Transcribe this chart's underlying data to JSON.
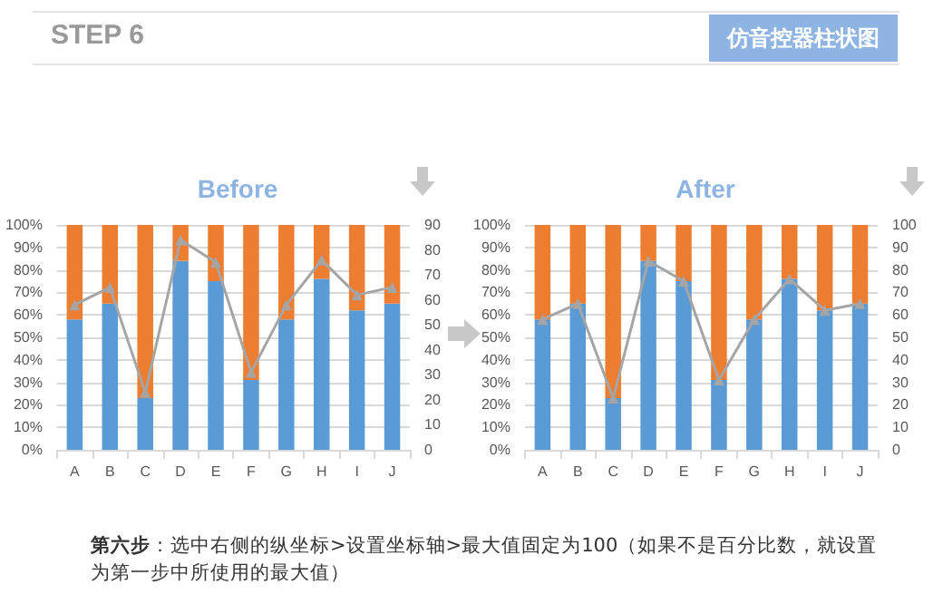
{
  "chart_data": [
    {
      "type": "bar",
      "title": "Before",
      "stacked": true,
      "categories": [
        "A",
        "B",
        "C",
        "D",
        "E",
        "F",
        "G",
        "H",
        "I",
        "J"
      ],
      "series": [
        {
          "color": "#5b9bd5",
          "values": [
            58,
            65,
            23,
            84,
            75,
            31,
            58,
            76,
            62,
            65
          ]
        },
        {
          "color": "#ed7d31",
          "values": [
            42,
            35,
            77,
            16,
            25,
            69,
            42,
            24,
            38,
            35
          ]
        },
        {
          "type": "line",
          "axis": "y2",
          "color": "#a5a5a5",
          "values": [
            58,
            65,
            23,
            84,
            75,
            31,
            58,
            76,
            62,
            65
          ]
        }
      ],
      "ylim": [
        0,
        100
      ],
      "yticks": [
        {
          "value": 0,
          "label": "0%"
        },
        {
          "value": 10,
          "label": "10%"
        },
        {
          "value": 20,
          "label": "20%"
        },
        {
          "value": 30,
          "label": "30%"
        },
        {
          "value": 40,
          "label": "40%"
        },
        {
          "value": 50,
          "label": "50%"
        },
        {
          "value": 60,
          "label": "60%"
        },
        {
          "value": 70,
          "label": "70%"
        },
        {
          "value": 80,
          "label": "80%"
        },
        {
          "value": 90,
          "label": "90%"
        },
        {
          "value": 100,
          "label": "100%"
        }
      ],
      "y2lim": [
        0,
        90
      ],
      "y2ticks": [
        0,
        10,
        20,
        30,
        40,
        50,
        60,
        70,
        80,
        90
      ],
      "grid": "y",
      "marker": "triangle",
      "line_style": "solid",
      "annotations": [
        "STEP 6",
        "仿音控器柱状图",
        "第六步：选中右侧的纵坐标>设置坐标轴>最大值固定为100（如果不是百分比数，就设置为第一步中所使用的最大值）"
      ]
    },
    {
      "type": "bar",
      "title": "After",
      "stacked": true,
      "categories": [
        "A",
        "B",
        "C",
        "D",
        "E",
        "F",
        "G",
        "H",
        "I",
        "J"
      ],
      "series": [
        {
          "color": "#5b9bd5",
          "values": [
            58,
            65,
            23,
            84,
            75,
            31,
            58,
            76,
            62,
            65
          ]
        },
        {
          "color": "#ed7d31",
          "values": [
            42,
            35,
            77,
            16,
            25,
            69,
            42,
            24,
            38,
            35
          ]
        },
        {
          "type": "line",
          "axis": "y2",
          "color": "#a5a5a5",
          "values": [
            58,
            65,
            23,
            84,
            75,
            31,
            58,
            76,
            62,
            65
          ]
        }
      ],
      "ylim": [
        0,
        100
      ],
      "yticks": [
        {
          "value": 0,
          "label": "0%"
        },
        {
          "value": 10,
          "label": "10%"
        },
        {
          "value": 20,
          "label": "20%"
        },
        {
          "value": 30,
          "label": "30%"
        },
        {
          "value": 40,
          "label": "40%"
        },
        {
          "value": 50,
          "label": "50%"
        },
        {
          "value": 60,
          "label": "60%"
        },
        {
          "value": 70,
          "label": "70%"
        },
        {
          "value": 80,
          "label": "80%"
        },
        {
          "value": 90,
          "label": "90%"
        },
        {
          "value": 100,
          "label": "100%"
        }
      ],
      "y2lim": [
        0,
        100
      ],
      "y2ticks": [
        0,
        10,
        20,
        30,
        40,
        50,
        60,
        70,
        80,
        90,
        100
      ],
      "grid": "y",
      "marker": "triangle",
      "line_style": "solid"
    }
  ]
}
